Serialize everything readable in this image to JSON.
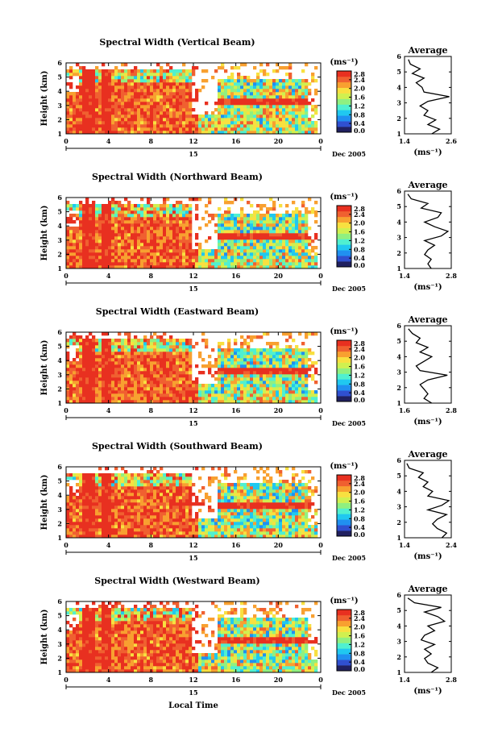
{
  "figure": {
    "xlabel": "Local Time",
    "date_label": "Dec 2005",
    "day_label": "15",
    "units_label": "(ms⁻¹)"
  },
  "chart_data": [
    {
      "type": "heatmap",
      "title": "Spectral Width (Vertical Beam)",
      "ylabel": "Height (km)",
      "x_ticks": [
        "0",
        "4",
        "8",
        "12",
        "16",
        "20",
        "0"
      ],
      "y_ticks": [
        "1",
        "2",
        "3",
        "4",
        "5",
        "6"
      ],
      "xlim": [
        0,
        24
      ],
      "ylim": [
        1,
        6
      ],
      "colorbar": {
        "label": "(ms⁻¹)",
        "ticks": [
          "0.0",
          "0.4",
          "0.8",
          "1.2",
          "1.6",
          "2.0",
          "2.4",
          "2.8"
        ],
        "range": [
          0,
          2.8
        ]
      },
      "profile": {
        "title": "Average",
        "xlabel": "(ms⁻¹)",
        "xlim": [
          1.4,
          2.6
        ],
        "x_ticks": [
          "1.4",
          "2.6"
        ],
        "y_ticks": [
          "1",
          "2",
          "3",
          "4",
          "5",
          "6"
        ],
        "height": [
          1.0,
          1.3,
          1.6,
          1.9,
          2.2,
          2.5,
          2.8,
          3.1,
          3.4,
          3.7,
          4.0,
          4.3,
          4.6,
          4.9,
          5.2,
          5.5,
          5.8
        ],
        "value": [
          2.1,
          2.3,
          2.0,
          2.2,
          1.9,
          2.0,
          1.8,
          2.0,
          2.55,
          1.9,
          1.85,
          1.7,
          1.9,
          1.6,
          1.8,
          1.55,
          1.5
        ]
      }
    },
    {
      "type": "heatmap",
      "title": "Spectral Width (Northward Beam)",
      "ylabel": "Height (km)",
      "x_ticks": [
        "0",
        "4",
        "8",
        "12",
        "16",
        "20",
        "0"
      ],
      "y_ticks": [
        "1",
        "2",
        "3",
        "4",
        "5",
        "6"
      ],
      "xlim": [
        0,
        24
      ],
      "ylim": [
        1,
        6
      ],
      "colorbar": {
        "label": "(ms⁻¹)",
        "ticks": [
          "0.0",
          "0.4",
          "0.8",
          "1.2",
          "1.6",
          "2.0",
          "2.4",
          "2.8"
        ],
        "range": [
          0,
          2.8
        ]
      },
      "profile": {
        "title": "Average",
        "xlabel": "(ms⁻¹)",
        "xlim": [
          1.4,
          2.8
        ],
        "x_ticks": [
          "1.4",
          "2.8"
        ],
        "y_ticks": [
          "1",
          "2",
          "3",
          "4",
          "5",
          "6"
        ],
        "height": [
          1.0,
          1.3,
          1.6,
          1.9,
          2.2,
          2.5,
          2.8,
          3.1,
          3.4,
          3.7,
          4.0,
          4.3,
          4.6,
          4.9,
          5.2,
          5.5,
          5.8
        ],
        "value": [
          2.2,
          2.1,
          2.2,
          2.0,
          2.1,
          2.3,
          2.0,
          2.5,
          2.7,
          2.3,
          2.0,
          2.4,
          2.5,
          1.9,
          2.1,
          1.6,
          1.5
        ]
      }
    },
    {
      "type": "heatmap",
      "title": "Spectral Width (Eastward Beam)",
      "ylabel": "Height (km)",
      "x_ticks": [
        "0",
        "4",
        "8",
        "12",
        "16",
        "20",
        "0"
      ],
      "y_ticks": [
        "1",
        "2",
        "3",
        "4",
        "5",
        "6"
      ],
      "xlim": [
        0,
        24
      ],
      "ylim": [
        1,
        6
      ],
      "colorbar": {
        "label": "(ms⁻¹)",
        "ticks": [
          "0.0",
          "0.4",
          "0.8",
          "1.2",
          "1.6",
          "2.0",
          "2.4",
          "2.8"
        ],
        "range": [
          0,
          2.8
        ]
      },
      "profile": {
        "title": "Average",
        "xlabel": "(ms⁻¹)",
        "xlim": [
          1.6,
          2.8
        ],
        "x_ticks": [
          "1.6",
          "2.8"
        ],
        "y_ticks": [
          "1",
          "2",
          "3",
          "4",
          "5",
          "6"
        ],
        "height": [
          1.0,
          1.3,
          1.6,
          1.9,
          2.2,
          2.5,
          2.8,
          3.1,
          3.4,
          3.7,
          4.0,
          4.3,
          4.6,
          4.9,
          5.2,
          5.5,
          5.8
        ],
        "value": [
          2.3,
          2.1,
          2.2,
          2.1,
          2.0,
          2.2,
          2.7,
          2.0,
          1.9,
          2.1,
          2.3,
          2.0,
          2.2,
          1.9,
          2.0,
          1.8,
          1.7
        ]
      }
    },
    {
      "type": "heatmap",
      "title": "Spectral Width (Southward Beam)",
      "ylabel": "Height (km)",
      "x_ticks": [
        "0",
        "4",
        "8",
        "12",
        "16",
        "20",
        "0"
      ],
      "y_ticks": [
        "1",
        "2",
        "3",
        "4",
        "5",
        "6"
      ],
      "xlim": [
        0,
        24
      ],
      "ylim": [
        1,
        6
      ],
      "colorbar": {
        "label": "(ms⁻¹)",
        "ticks": [
          "0.0",
          "0.4",
          "0.8",
          "1.2",
          "1.6",
          "2.0",
          "2.4",
          "2.8"
        ],
        "range": [
          0,
          2.8
        ]
      },
      "profile": {
        "title": "Average",
        "xlabel": "(ms⁻¹)",
        "xlim": [
          1.4,
          2.4
        ],
        "x_ticks": [
          "1.4",
          "2.4"
        ],
        "y_ticks": [
          "1",
          "2",
          "3",
          "4",
          "5",
          "6"
        ],
        "height": [
          1.0,
          1.3,
          1.6,
          1.9,
          2.2,
          2.5,
          2.8,
          3.1,
          3.4,
          3.7,
          4.0,
          4.3,
          4.6,
          4.9,
          5.2,
          5.5,
          5.8
        ],
        "value": [
          2.2,
          2.3,
          2.1,
          2.0,
          2.1,
          2.3,
          1.9,
          2.2,
          2.35,
          1.9,
          2.0,
          1.8,
          1.9,
          1.7,
          1.8,
          1.5,
          1.45
        ]
      }
    },
    {
      "type": "heatmap",
      "title": "Spectral Width (Westward Beam)",
      "ylabel": "Height (km)",
      "x_ticks": [
        "0",
        "4",
        "8",
        "12",
        "16",
        "20",
        "0"
      ],
      "y_ticks": [
        "1",
        "2",
        "3",
        "4",
        "5",
        "6"
      ],
      "xlim": [
        0,
        24
      ],
      "ylim": [
        1,
        6
      ],
      "colorbar": {
        "label": "(ms⁻¹)",
        "ticks": [
          "0.0",
          "0.4",
          "0.8",
          "1.2",
          "1.6",
          "2.0",
          "2.4",
          "2.8"
        ],
        "range": [
          0,
          2.8
        ]
      },
      "profile": {
        "title": "Average",
        "xlabel": "(ms⁻¹)",
        "xlim": [
          1.4,
          2.8
        ],
        "x_ticks": [
          "1.4",
          "2.8"
        ],
        "y_ticks": [
          "1",
          "2",
          "3",
          "4",
          "5",
          "6"
        ],
        "height": [
          1.0,
          1.3,
          1.6,
          1.9,
          2.2,
          2.5,
          2.8,
          3.1,
          3.4,
          3.7,
          4.0,
          4.3,
          4.6,
          4.9,
          5.2,
          5.5,
          5.8
        ],
        "value": [
          2.2,
          2.4,
          2.1,
          2.0,
          2.2,
          2.0,
          2.3,
          1.9,
          2.0,
          2.3,
          2.1,
          2.6,
          2.4,
          2.0,
          2.5,
          1.7,
          1.5
        ]
      }
    }
  ]
}
